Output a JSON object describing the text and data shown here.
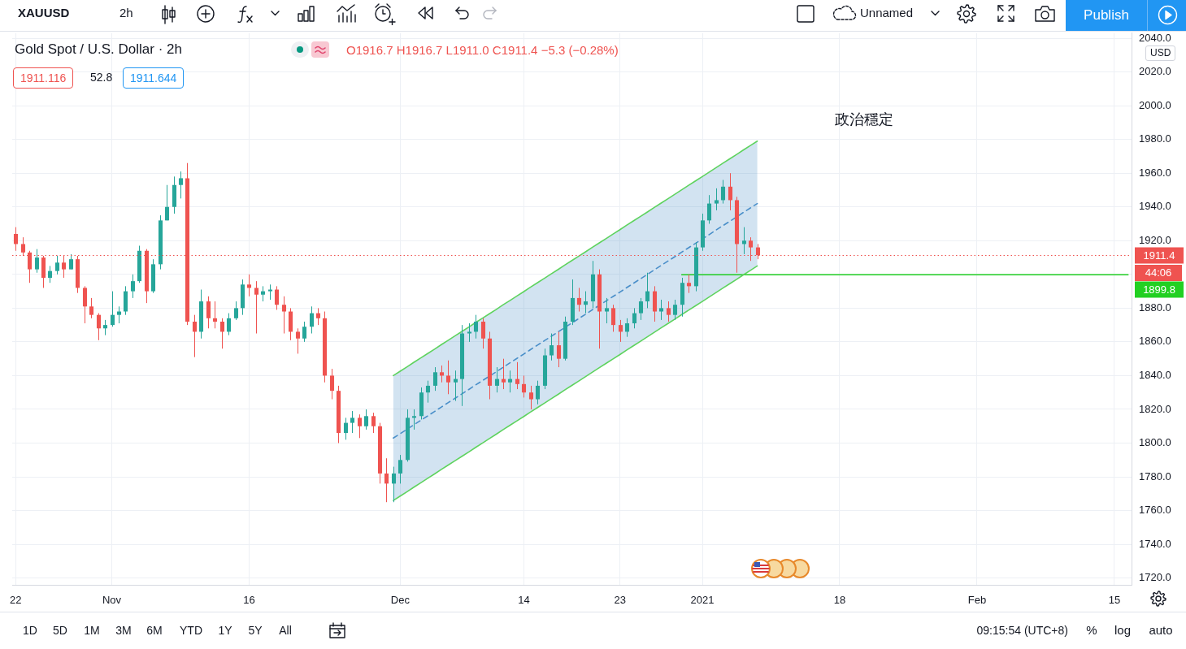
{
  "chart_data": {
    "type": "candlestick",
    "title": "Gold Spot / U.S. Dollar · 2h",
    "subtitle": "O1916.7 H1916.7 L1911.0 C1911.4 −5.3 (−0.28%)",
    "annotations": [
      "XAUUSD",
      "2h",
      "Unnamed",
      "Publish",
      "1911.116",
      "52.8",
      "1911.644",
      "政治穩定",
      "USD",
      "44:06",
      "1D",
      "5D",
      "1M",
      "3M",
      "6M",
      "YTD",
      "1Y",
      "5Y",
      "All",
      "09:15:54 (UTC+8)",
      "%",
      "log",
      "auto"
    ],
    "categories": [
      "22",
      null,
      null,
      null,
      null,
      null,
      null,
      null,
      null,
      null,
      null,
      null,
      null,
      null,
      "Nov",
      null,
      null,
      null,
      null,
      null,
      null,
      null,
      null,
      null,
      null,
      null,
      null,
      null,
      null,
      null,
      null,
      null,
      null,
      null,
      "16",
      null,
      null,
      null,
      null,
      null,
      null,
      null,
      null,
      null,
      null,
      null,
      null,
      null,
      null,
      null,
      null,
      null,
      null,
      null,
      null,
      null,
      "Dec",
      null,
      null,
      null,
      null,
      null,
      null,
      null,
      null,
      null,
      null,
      null,
      null,
      null,
      null,
      null,
      null,
      null,
      "14",
      null,
      null,
      null,
      null,
      null,
      null,
      null,
      null,
      null,
      null,
      null,
      null,
      null,
      "23",
      null,
      null,
      null,
      null,
      null,
      null,
      null,
      null,
      null,
      null,
      null,
      "2021",
      null,
      null,
      null,
      null,
      null,
      null,
      null,
      null,
      null,
      null,
      null,
      null,
      null,
      null,
      null,
      null,
      null,
      null,
      null,
      "18",
      null,
      null,
      null,
      null,
      null,
      null,
      null,
      null,
      null,
      null,
      null,
      null,
      null,
      null,
      null,
      null,
      null,
      null,
      null,
      "Feb",
      null,
      null,
      null,
      null,
      null,
      null,
      null,
      null,
      null,
      null,
      null,
      null,
      null,
      null,
      null,
      null,
      null,
      null,
      null,
      "15",
      null,
      null
    ],
    "ohlc": [
      [
        1924,
        1928,
        1914,
        1918
      ],
      [
        1918,
        1922,
        1911,
        1913
      ],
      [
        1913,
        1914,
        1895,
        1903
      ],
      [
        1903,
        1915,
        1901,
        1910
      ],
      [
        1910,
        1911,
        1892,
        1898
      ],
      [
        1898,
        1905,
        1895,
        1902
      ],
      [
        1902,
        1911,
        1900,
        1907
      ],
      [
        1907,
        1911,
        1898,
        1903
      ],
      [
        1903,
        1912,
        1903,
        1909
      ],
      [
        1909,
        1911,
        1889,
        1892
      ],
      [
        1892,
        1893,
        1871,
        1881
      ],
      [
        1881,
        1886,
        1874,
        1876
      ],
      [
        1876,
        1877,
        1861,
        1868
      ],
      [
        1868,
        1873,
        1864,
        1870
      ],
      [
        1870,
        1890,
        1869,
        1876
      ],
      [
        1876,
        1881,
        1871,
        1878
      ],
      [
        1878,
        1893,
        1876,
        1890
      ],
      [
        1890,
        1900,
        1886,
        1896
      ],
      [
        1896,
        1917,
        1895,
        1914
      ],
      [
        1914,
        1915,
        1883,
        1890
      ],
      [
        1890,
        1909,
        1889,
        1906
      ],
      [
        1906,
        1935,
        1903,
        1932
      ],
      [
        1932,
        1953,
        1932,
        1940
      ],
      [
        1940,
        1958,
        1936,
        1953
      ],
      [
        1953,
        1961,
        1945,
        1957
      ],
      [
        1957,
        1966,
        1870,
        1872
      ],
      [
        1872,
        1876,
        1851,
        1866
      ],
      [
        1866,
        1891,
        1862,
        1884
      ],
      [
        1884,
        1887,
        1868,
        1874
      ],
      [
        1874,
        1884,
        1868,
        1872
      ],
      [
        1872,
        1874,
        1856,
        1866
      ],
      [
        1866,
        1877,
        1864,
        1874
      ],
      [
        1874,
        1884,
        1873,
        1880
      ],
      [
        1880,
        1897,
        1876,
        1894
      ],
      [
        1894,
        1900,
        1887,
        1892
      ],
      [
        1892,
        1896,
        1865,
        1888
      ],
      [
        1888,
        1893,
        1884,
        1890
      ],
      [
        1890,
        1894,
        1885,
        1891
      ],
      [
        1891,
        1893,
        1879,
        1882
      ],
      [
        1882,
        1887,
        1865,
        1878
      ],
      [
        1878,
        1880,
        1861,
        1866
      ],
      [
        1866,
        1868,
        1853,
        1862
      ],
      [
        1862,
        1872,
        1860,
        1869
      ],
      [
        1869,
        1881,
        1865,
        1877
      ],
      [
        1877,
        1880,
        1870,
        1874
      ],
      [
        1874,
        1878,
        1836,
        1840
      ],
      [
        1840,
        1844,
        1826,
        1831
      ],
      [
        1831,
        1834,
        1800,
        1806
      ],
      [
        1806,
        1815,
        1802,
        1812
      ],
      [
        1812,
        1819,
        1806,
        1815
      ],
      [
        1815,
        1817,
        1803,
        1810
      ],
      [
        1810,
        1820,
        1808,
        1816
      ],
      [
        1816,
        1818,
        1806,
        1810
      ],
      [
        1810,
        1812,
        1776,
        1782
      ],
      [
        1782,
        1791,
        1765,
        1776
      ],
      [
        1776,
        1786,
        1765,
        1782
      ],
      [
        1782,
        1793,
        1776,
        1790
      ],
      [
        1790,
        1820,
        1789,
        1815
      ],
      [
        1815,
        1820,
        1808,
        1816
      ],
      [
        1816,
        1833,
        1814,
        1830
      ],
      [
        1830,
        1837,
        1824,
        1834
      ],
      [
        1834,
        1845,
        1831,
        1842
      ],
      [
        1842,
        1846,
        1836,
        1840
      ],
      [
        1840,
        1849,
        1829,
        1836
      ],
      [
        1836,
        1843,
        1825,
        1838
      ],
      [
        1838,
        1870,
        1822,
        1865
      ],
      [
        1865,
        1871,
        1860,
        1866
      ],
      [
        1866,
        1876,
        1862,
        1872
      ],
      [
        1872,
        1874,
        1856,
        1862
      ],
      [
        1862,
        1866,
        1826,
        1834
      ],
      [
        1834,
        1845,
        1830,
        1838
      ],
      [
        1838,
        1850,
        1832,
        1836
      ],
      [
        1836,
        1843,
        1830,
        1838
      ],
      [
        1838,
        1848,
        1832,
        1835
      ],
      [
        1835,
        1840,
        1827,
        1830
      ],
      [
        1830,
        1834,
        1820,
        1826
      ],
      [
        1826,
        1837,
        1823,
        1834
      ],
      [
        1834,
        1856,
        1832,
        1852
      ],
      [
        1852,
        1865,
        1849,
        1858
      ],
      [
        1858,
        1866,
        1845,
        1850
      ],
      [
        1850,
        1875,
        1849,
        1872
      ],
      [
        1872,
        1897,
        1870,
        1886
      ],
      [
        1886,
        1892,
        1878,
        1882
      ],
      [
        1882,
        1890,
        1877,
        1884
      ],
      [
        1884,
        1908,
        1880,
        1900
      ],
      [
        1900,
        1903,
        1856,
        1878
      ],
      [
        1878,
        1886,
        1871,
        1880
      ],
      [
        1880,
        1882,
        1866,
        1870
      ],
      [
        1870,
        1873,
        1860,
        1866
      ],
      [
        1866,
        1874,
        1863,
        1871
      ],
      [
        1871,
        1880,
        1868,
        1877
      ],
      [
        1877,
        1886,
        1873,
        1884
      ],
      [
        1884,
        1901,
        1880,
        1890
      ],
      [
        1890,
        1893,
        1872,
        1878
      ],
      [
        1878,
        1885,
        1873,
        1880
      ],
      [
        1880,
        1884,
        1872,
        1876
      ],
      [
        1876,
        1885,
        1873,
        1882
      ],
      [
        1882,
        1898,
        1875,
        1895
      ],
      [
        1895,
        1900,
        1889,
        1893
      ],
      [
        1893,
        1919,
        1890,
        1916
      ],
      [
        1916,
        1936,
        1914,
        1932
      ],
      [
        1932,
        1947,
        1930,
        1942
      ],
      [
        1942,
        1951,
        1938,
        1944
      ],
      [
        1944,
        1956,
        1942,
        1952
      ],
      [
        1952,
        1960,
        1938,
        1944
      ],
      [
        1944,
        1946,
        1901,
        1918
      ],
      [
        1918,
        1928,
        1912,
        1920
      ],
      [
        1920,
        1922,
        1908,
        1916
      ],
      [
        1916,
        1918,
        1909,
        1911.4
      ],
      null,
      null,
      null,
      null,
      null,
      null,
      null,
      null,
      null,
      null,
      null,
      null,
      null,
      null,
      null,
      null,
      null,
      null,
      null,
      null,
      null,
      null,
      null,
      null,
      null,
      null,
      null,
      null,
      null,
      null,
      null,
      null,
      null,
      null,
      null,
      null,
      null,
      null,
      null,
      null,
      null,
      null,
      null,
      null,
      null,
      null,
      null,
      null,
      null,
      null,
      null,
      null,
      null,
      null
    ],
    "colors": [
      "#ef5350",
      "#ef5350",
      "#ef5350",
      "#26a69a",
      "#ef5350",
      "#26a69a",
      "#26a69a",
      "#ef5350",
      "#26a69a",
      "#ef5350",
      "#ef5350",
      "#ef5350",
      "#ef5350",
      "#26a69a",
      "#26a69a",
      "#26a69a",
      "#26a69a",
      "#26a69a",
      "#26a69a",
      "#ef5350",
      "#26a69a",
      "#26a69a",
      "#26a69a",
      "#26a69a",
      "#26a69a",
      "#ef5350",
      "#ef5350",
      "#26a69a",
      "#ef5350",
      "#ef5350",
      "#ef5350",
      "#26a69a",
      "#26a69a",
      "#26a69a",
      "#ef5350",
      "#ef5350",
      "#26a69a",
      "#26a69a",
      "#ef5350",
      "#ef5350",
      "#ef5350",
      "#ef5350",
      "#26a69a",
      "#26a69a",
      "#ef5350",
      "#ef5350",
      "#ef5350",
      "#ef5350",
      "#26a69a",
      "#26a69a",
      "#ef5350",
      "#26a69a",
      "#ef5350",
      "#ef5350",
      "#ef5350",
      "#26a69a",
      "#26a69a",
      "#26a69a",
      "#26a69a",
      "#26a69a",
      "#26a69a",
      "#26a69a",
      "#ef5350",
      "#ef5350",
      "#26a69a",
      "#26a69a",
      "#26a69a",
      "#26a69a",
      "#ef5350",
      "#ef5350",
      "#26a69a",
      "#ef5350",
      "#26a69a",
      "#ef5350",
      "#ef5350",
      "#ef5350",
      "#26a69a",
      "#26a69a",
      "#26a69a",
      "#ef5350",
      "#26a69a",
      "#26a69a",
      "#ef5350",
      "#26a69a",
      "#26a69a",
      "#ef5350",
      "#26a69a",
      "#ef5350",
      "#ef5350",
      "#26a69a",
      "#26a69a",
      "#26a69a",
      "#26a69a",
      "#ef5350",
      "#26a69a",
      "#ef5350",
      "#26a69a",
      "#26a69a",
      "#ef5350",
      "#26a69a",
      "#26a69a",
      "#26a69a",
      "#26a69a",
      "#26a69a",
      "#ef5350",
      "#ef5350",
      "#26a69a",
      "#ef5350",
      "#ef5350",
      null,
      null,
      null,
      null,
      null,
      null,
      null,
      null,
      null,
      null,
      null,
      null,
      null,
      null,
      null,
      null,
      null,
      null,
      null,
      null,
      null,
      null,
      null,
      null,
      null,
      null,
      null,
      null,
      null,
      null,
      null,
      null,
      null,
      null,
      null,
      null,
      null,
      null,
      null,
      null,
      null,
      null,
      null,
      null,
      null,
      null,
      null,
      null,
      null,
      null,
      null,
      null,
      null,
      null
    ],
    "series": [
      {
        "type": "line",
        "color": "#5fd35f",
        "values": [
          null,
          null,
          null,
          null,
          null,
          null,
          null,
          null,
          null,
          null,
          null,
          null,
          null,
          null,
          null,
          null,
          null,
          null,
          null,
          null,
          null,
          null,
          null,
          null,
          null,
          null,
          null,
          null,
          null,
          null,
          null,
          null,
          null,
          null,
          null,
          null,
          null,
          null,
          null,
          null,
          null,
          null,
          null,
          null,
          null,
          null,
          null,
          null,
          null,
          null,
          null,
          null,
          null,
          null,
          null,
          1840.0,
          1842.6,
          1845.2,
          1847.9,
          1850.5,
          1853.1,
          1855.7,
          1858.4,
          1861.0,
          1863.6,
          1866.2,
          1868.8,
          1871.5,
          1874.1,
          1876.7,
          1879.3,
          1882.0,
          1884.6,
          1887.2,
          1889.8,
          1892.5,
          1895.1,
          1897.7,
          1900.3,
          1902.9,
          1905.6,
          1908.2,
          1910.8,
          1913.4,
          1916.1,
          1918.7,
          1921.3,
          1923.9,
          1926.5,
          1929.2,
          1931.8,
          1934.4,
          1937.0,
          1939.7,
          1942.3,
          1944.9,
          1947.5,
          1950.2,
          1952.8,
          1955.4,
          1958.0,
          1960.6,
          1963.3,
          1965.9,
          1968.5,
          1971.1,
          1973.8,
          1976.4,
          1979.0,
          null,
          null,
          null,
          null,
          null,
          null,
          null,
          null,
          null,
          null,
          null,
          null,
          null,
          null,
          null,
          null,
          null,
          null,
          null,
          null,
          null,
          null,
          null,
          null,
          null,
          null,
          null,
          null,
          null,
          null,
          null,
          null,
          null,
          null,
          null,
          null,
          null,
          null,
          null,
          null,
          null,
          null,
          null,
          null,
          null,
          null,
          null,
          null,
          null,
          null,
          null,
          null,
          null,
          null
        ]
      },
      {
        "type": "line",
        "color": "#5fd35f",
        "values": [
          null,
          null,
          null,
          null,
          null,
          null,
          null,
          null,
          null,
          null,
          null,
          null,
          null,
          null,
          null,
          null,
          null,
          null,
          null,
          null,
          null,
          null,
          null,
          null,
          null,
          null,
          null,
          null,
          null,
          null,
          null,
          null,
          null,
          null,
          null,
          null,
          null,
          null,
          null,
          null,
          null,
          null,
          null,
          null,
          null,
          null,
          null,
          null,
          null,
          null,
          null,
          null,
          null,
          null,
          null,
          1766.0,
          1768.6,
          1771.2,
          1773.9,
          1776.5,
          1779.1,
          1781.7,
          1784.4,
          1787.0,
          1789.6,
          1792.2,
          1794.8,
          1797.5,
          1800.1,
          1802.7,
          1805.3,
          1808.0,
          1810.6,
          1813.2,
          1815.8,
          1818.5,
          1821.1,
          1823.7,
          1826.3,
          1828.9,
          1831.6,
          1834.2,
          1836.8,
          1839.4,
          1842.1,
          1844.7,
          1847.3,
          1849.9,
          1852.5,
          1855.2,
          1857.8,
          1860.4,
          1863.0,
          1865.7,
          1868.3,
          1870.9,
          1873.5,
          1876.2,
          1878.8,
          1881.4,
          1884.0,
          1886.6,
          1889.3,
          1891.9,
          1894.5,
          1897.1,
          1899.8,
          1902.4,
          1905.0,
          null,
          null,
          null,
          null,
          null,
          null,
          null,
          null,
          null,
          null,
          null,
          null,
          null,
          null,
          null,
          null,
          null,
          null,
          null,
          null,
          null,
          null,
          null,
          null,
          null,
          null,
          null,
          null,
          null,
          null,
          null,
          null,
          null,
          null,
          null,
          null,
          null,
          null,
          null,
          null,
          null,
          null,
          null,
          null,
          null,
          null,
          null,
          null,
          null,
          null,
          null,
          null,
          null,
          null
        ]
      },
      {
        "type": "line",
        "color": "#4a8fc9",
        "line_style": "dashed",
        "values": [
          null,
          null,
          null,
          null,
          null,
          null,
          null,
          null,
          null,
          null,
          null,
          null,
          null,
          null,
          null,
          null,
          null,
          null,
          null,
          null,
          null,
          null,
          null,
          null,
          null,
          null,
          null,
          null,
          null,
          null,
          null,
          null,
          null,
          null,
          null,
          null,
          null,
          null,
          null,
          null,
          null,
          null,
          null,
          null,
          null,
          null,
          null,
          null,
          null,
          null,
          null,
          null,
          null,
          null,
          null,
          1803.0,
          1805.6,
          1808.2,
          1810.9,
          1813.5,
          1816.1,
          1818.7,
          1821.4,
          1824.0,
          1826.6,
          1829.2,
          1831.8,
          1834.5,
          1837.1,
          1839.7,
          1842.3,
          1845.0,
          1847.6,
          1850.2,
          1852.8,
          1855.5,
          1858.1,
          1860.7,
          1863.3,
          1865.9,
          1868.6,
          1871.2,
          1873.8,
          1876.4,
          1879.1,
          1881.7,
          1884.3,
          1886.9,
          1889.5,
          1892.2,
          1894.8,
          1897.4,
          1900.0,
          1902.7,
          1905.3,
          1907.9,
          1910.5,
          1913.2,
          1915.8,
          1918.4,
          1921.0,
          1923.6,
          1926.3,
          1928.9,
          1931.5,
          1934.1,
          1936.8,
          1939.4,
          1942.0,
          null,
          null,
          null,
          null,
          null,
          null,
          null,
          null,
          null,
          null,
          null,
          null,
          null,
          null,
          null,
          null,
          null,
          null,
          null,
          null,
          null,
          null,
          null,
          null,
          null,
          null,
          null,
          null,
          null,
          null,
          null,
          null,
          null,
          null,
          null,
          null,
          null,
          null,
          null,
          null,
          null,
          null,
          null,
          null,
          null,
          null,
          null,
          null,
          null,
          null,
          null,
          null,
          null,
          null
        ],
        "lower": [
          null,
          null,
          null,
          null,
          null,
          null,
          null,
          null,
          null,
          null,
          null,
          null,
          null,
          null,
          null,
          null,
          null,
          null,
          null,
          null,
          null,
          null,
          null,
          null,
          null,
          null,
          null,
          null,
          null,
          null,
          null,
          null,
          null,
          null,
          null,
          null,
          null,
          null,
          null,
          null,
          null,
          null,
          null,
          null,
          null,
          null,
          null,
          null,
          null,
          null,
          null,
          null,
          null,
          null,
          null,
          1766.0,
          1768.6,
          1771.2,
          1773.9,
          1776.5,
          1779.1,
          1781.7,
          1784.4,
          1787.0,
          1789.6,
          1792.2,
          1794.8,
          1797.5,
          1800.1,
          1802.7,
          1805.3,
          1808.0,
          1810.6,
          1813.2,
          1815.8,
          1818.5,
          1821.1,
          1823.7,
          1826.3,
          1828.9,
          1831.6,
          1834.2,
          1836.8,
          1839.4,
          1842.1,
          1844.7,
          1847.3,
          1849.9,
          1852.5,
          1855.2,
          1857.8,
          1860.4,
          1863.0,
          1865.7,
          1868.3,
          1870.9,
          1873.5,
          1876.2,
          1878.8,
          1881.4,
          1884.0,
          1886.6,
          1889.3,
          1891.9,
          1894.5,
          1897.1,
          1899.8,
          1902.4,
          1905.0,
          null,
          null,
          null,
          null,
          null,
          null,
          null,
          null,
          null,
          null,
          null,
          null,
          null,
          null,
          null,
          null,
          null,
          null,
          null,
          null,
          null,
          null,
          null,
          null,
          null,
          null,
          null,
          null,
          null,
          null,
          null,
          null,
          null,
          null,
          null,
          null,
          null,
          null,
          null,
          null,
          null,
          null,
          null,
          null,
          null,
          null,
          null,
          null,
          null,
          null,
          null,
          null,
          null,
          null
        ],
        "upper": [
          null,
          null,
          null,
          null,
          null,
          null,
          null,
          null,
          null,
          null,
          null,
          null,
          null,
          null,
          null,
          null,
          null,
          null,
          null,
          null,
          null,
          null,
          null,
          null,
          null,
          null,
          null,
          null,
          null,
          null,
          null,
          null,
          null,
          null,
          null,
          null,
          null,
          null,
          null,
          null,
          null,
          null,
          null,
          null,
          null,
          null,
          null,
          null,
          null,
          null,
          null,
          null,
          null,
          null,
          null,
          1840.0,
          1842.6,
          1845.2,
          1847.9,
          1850.5,
          1853.1,
          1855.7,
          1858.4,
          1861.0,
          1863.6,
          1866.2,
          1868.8,
          1871.5,
          1874.1,
          1876.7,
          1879.3,
          1882.0,
          1884.6,
          1887.2,
          1889.8,
          1892.5,
          1895.1,
          1897.7,
          1900.3,
          1902.9,
          1905.6,
          1908.2,
          1910.8,
          1913.4,
          1916.1,
          1918.7,
          1921.3,
          1923.9,
          1926.5,
          1929.2,
          1931.8,
          1934.4,
          1937.0,
          1939.7,
          1942.3,
          1944.9,
          1947.5,
          1950.2,
          1952.8,
          1955.4,
          1958.0,
          1960.6,
          1963.3,
          1965.9,
          1968.5,
          1971.1,
          1973.8,
          1976.4,
          1979.0,
          null,
          null,
          null,
          null,
          null,
          null,
          null,
          null,
          null,
          null,
          null,
          null,
          null,
          null,
          null,
          null,
          null,
          null,
          null,
          null,
          null,
          null,
          null,
          null,
          null,
          null,
          null,
          null,
          null,
          null,
          null,
          null,
          null,
          null,
          null,
          null,
          null,
          null,
          null,
          null,
          null,
          null,
          null,
          null,
          null,
          null,
          null,
          null,
          null,
          null,
          null,
          null,
          null,
          null
        ]
      },
      {
        "type": "line",
        "color": "#22d022",
        "values": [
          null,
          null,
          null,
          null,
          null,
          null,
          null,
          null,
          null,
          null,
          null,
          null,
          null,
          null,
          null,
          null,
          null,
          null,
          null,
          null,
          null,
          null,
          null,
          null,
          null,
          null,
          null,
          null,
          null,
          null,
          null,
          null,
          null,
          null,
          null,
          null,
          null,
          null,
          null,
          null,
          null,
          null,
          null,
          null,
          null,
          null,
          null,
          null,
          null,
          null,
          null,
          null,
          null,
          null,
          null,
          null,
          null,
          null,
          null,
          null,
          null,
          null,
          null,
          null,
          null,
          null,
          null,
          null,
          null,
          null,
          null,
          null,
          null,
          null,
          null,
          null,
          null,
          null,
          null,
          null,
          null,
          null,
          null,
          null,
          null,
          null,
          null,
          null,
          null,
          null,
          null,
          null,
          null,
          null,
          null,
          null,
          null,
          1899.8,
          1899.8,
          1899.8,
          1899.8,
          1899.8,
          1899.8,
          1899.8,
          1899.8,
          1899.8,
          1899.8,
          1899.8,
          1899.8,
          1899.8,
          1899.8,
          1899.8,
          1899.8,
          1899.8,
          1899.8,
          1899.8,
          1899.8,
          1899.8,
          1899.8,
          1899.8,
          1899.8,
          1899.8,
          1899.8,
          1899.8,
          1899.8,
          1899.8,
          1899.8,
          1899.8,
          1899.8,
          1899.8,
          1899.8,
          1899.8,
          1899.8,
          1899.8,
          1899.8,
          1899.8,
          1899.8,
          1899.8,
          1899.8,
          1899.8,
          1899.8,
          1899.8,
          1899.8,
          1899.8,
          1899.8,
          1899.8,
          1899.8,
          1899.8,
          1899.8,
          1899.8,
          1899.8,
          1899.8,
          1899.8,
          1899.8,
          1899.8,
          1899.8,
          1899.8,
          1899.8,
          1899.8,
          1899.8,
          1899.8,
          1899.8,
          1899.8
        ],
        "value_labels": [
          null,
          null,
          null,
          null,
          null,
          null,
          null,
          null,
          null,
          null,
          null,
          null,
          null,
          null,
          null,
          null,
          null,
          null,
          null,
          null,
          null,
          null,
          null,
          null,
          null,
          null,
          null,
          null,
          null,
          null,
          null,
          null,
          null,
          null,
          null,
          null,
          null,
          null,
          null,
          null,
          null,
          null,
          null,
          null,
          null,
          null,
          null,
          null,
          null,
          null,
          null,
          null,
          null,
          null,
          null,
          null,
          null,
          null,
          null,
          null,
          null,
          null,
          null,
          null,
          null,
          null,
          null,
          null,
          null,
          null,
          null,
          null,
          null,
          null,
          null,
          null,
          null,
          null,
          null,
          null,
          null,
          null,
          null,
          null,
          null,
          null,
          null,
          null,
          null,
          null,
          null,
          null,
          null,
          null,
          null,
          null,
          null,
          null,
          null,
          null,
          null,
          null,
          null,
          null,
          null,
          null,
          null,
          null,
          null,
          null,
          null,
          null,
          null,
          null,
          null,
          null,
          null,
          null,
          null,
          null,
          null,
          null,
          null,
          null,
          null,
          null,
          null,
          null,
          null,
          null,
          null,
          null,
          null,
          null,
          null,
          null,
          null,
          null,
          null,
          null,
          null,
          null,
          null,
          null,
          null,
          null,
          null,
          null,
          null,
          null,
          null,
          null,
          null,
          null,
          null,
          null,
          null,
          null,
          null,
          null,
          null,
          null,
          "1899.8"
        ]
      }
    ],
    "ylim": [
      1716,
      2043
    ],
    "yticks": [
      {
        "value": 1720,
        "label": "1720.0"
      },
      {
        "value": 1740,
        "label": "1740.0"
      },
      {
        "value": 1760,
        "label": "1760.0"
      },
      {
        "value": 1780,
        "label": "1780.0"
      },
      {
        "value": 1800,
        "label": "1800.0"
      },
      {
        "value": 1820,
        "label": "1820.0"
      },
      {
        "value": 1840,
        "label": "1840.0"
      },
      {
        "value": 1860,
        "label": "1860.0"
      },
      {
        "value": 1880,
        "label": "1880.0"
      },
      {
        "value": 1900,
        "label": null
      },
      {
        "value": 1920,
        "label": "1920.0"
      },
      {
        "value": 1940,
        "label": "1940.0"
      },
      {
        "value": 1960,
        "label": "1960.0"
      },
      {
        "value": 1980,
        "label": "1980.0"
      },
      {
        "value": 2000,
        "label": "2000.0"
      },
      {
        "value": 2020,
        "label": "2020.0"
      },
      {
        "value": 2040,
        "label": "2040.0"
      }
    ],
    "grid": true,
    "ref_lines": [
      {
        "axis": "y",
        "value": 1911.4,
        "label": "1911.4",
        "color": "#ef5350",
        "line_style": "dotted"
      }
    ]
  }
}
